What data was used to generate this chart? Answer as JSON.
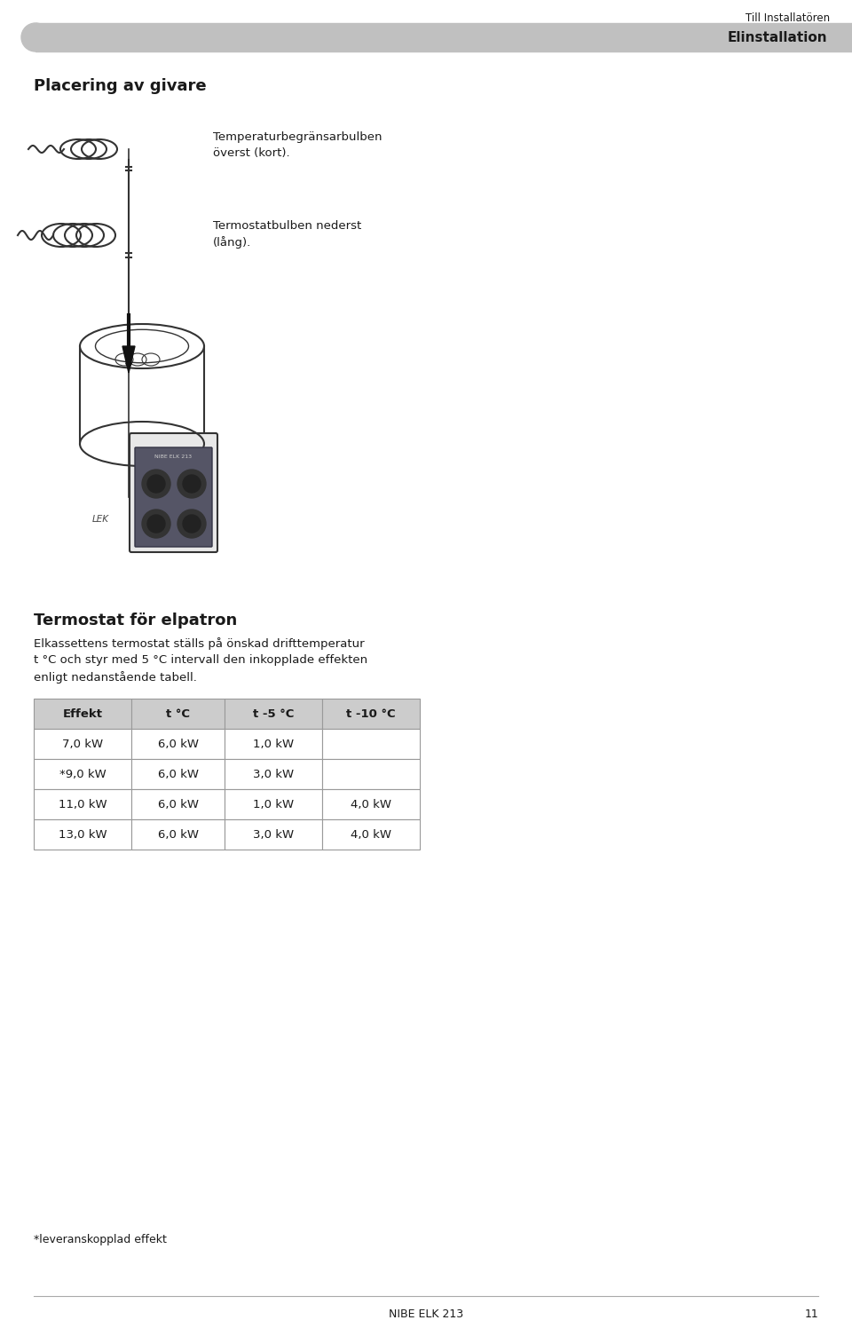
{
  "header_text": "Till Installatören",
  "header_bar_text": "Elinstallation",
  "header_bar_color": "#c0c0c0",
  "section1_title": "Placering av givare",
  "label1": "Temperaturbegränsarbulben\növerst (kort).",
  "label2": "Termostatbulben nederst\n(lång).",
  "lek_label": "LEK",
  "section2_title": "Termostat för elpatron",
  "section2_body_line1": "Elkassettens termostat ställs på önskad drifttemperatur",
  "section2_body_line2": "t °C och styr med 5 °C intervall den inkopplade effekten",
  "section2_body_line3": "enligt nedanstående tabell.",
  "table_headers": [
    "Effekt",
    "t °C",
    "t -5 °C",
    "t -10 °C"
  ],
  "table_data": [
    [
      "7,0 kW",
      "6,0 kW",
      "1,0 kW",
      ""
    ],
    [
      "*9,0 kW",
      "6,0 kW",
      "3,0 kW",
      ""
    ],
    [
      "11,0 kW",
      "6,0 kW",
      "1,0 kW",
      "4,0 kW"
    ],
    [
      "13,0 kW",
      "6,0 kW",
      "3,0 kW",
      "4,0 kW"
    ]
  ],
  "table_header_bg": "#cccccc",
  "table_border_color": "#999999",
  "footnote": "*leveranskopplad effekt",
  "footer_text": "NIBE ELK 213",
  "footer_page": "11",
  "bg_color": "#ffffff",
  "text_color": "#1a1a1a",
  "draw_color": "#333333"
}
